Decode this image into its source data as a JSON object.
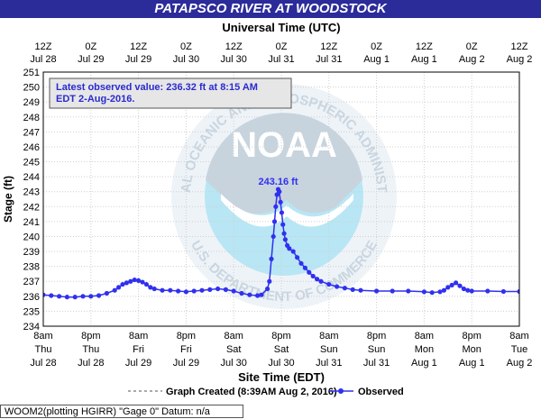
{
  "chart_data": {
    "type": "line",
    "title": "PATAPSCO RIVER AT WOODSTOCK",
    "top_axis_title": "Universal Time (UTC)",
    "top_ticks": [
      {
        "line1": "12Z",
        "line2": "Jul 28"
      },
      {
        "line1": "0Z",
        "line2": "Jul 29"
      },
      {
        "line1": "12Z",
        "line2": "Jul 29"
      },
      {
        "line1": "0Z",
        "line2": "Jul 30"
      },
      {
        "line1": "12Z",
        "line2": "Jul 30"
      },
      {
        "line1": "0Z",
        "line2": "Jul 31"
      },
      {
        "line1": "12Z",
        "line2": "Jul 31"
      },
      {
        "line1": "0Z",
        "line2": "Aug  1"
      },
      {
        "line1": "12Z",
        "line2": "Aug  1"
      },
      {
        "line1": "0Z",
        "line2": "Aug  2"
      },
      {
        "line1": "12Z",
        "line2": "Aug  2"
      }
    ],
    "bottom_ticks": [
      {
        "line1": "8am",
        "line2": "Thu",
        "line3": "Jul 28"
      },
      {
        "line1": "8pm",
        "line2": "Thu",
        "line3": "Jul 28"
      },
      {
        "line1": "8am",
        "line2": "Fri",
        "line3": "Jul 29"
      },
      {
        "line1": "8pm",
        "line2": "Fri",
        "line3": "Jul 29"
      },
      {
        "line1": "8am",
        "line2": "Sat",
        "line3": "Jul 30"
      },
      {
        "line1": "8pm",
        "line2": "Sat",
        "line3": "Jul 30"
      },
      {
        "line1": "8am",
        "line2": "Sun",
        "line3": "Jul 31"
      },
      {
        "line1": "8pm",
        "line2": "Sun",
        "line3": "Jul 31"
      },
      {
        "line1": "8am",
        "line2": "Mon",
        "line3": "Aug 1"
      },
      {
        "line1": "8pm",
        "line2": "Mon",
        "line3": "Aug 1"
      },
      {
        "line1": "8am",
        "line2": "Tue",
        "line3": "Aug 2"
      }
    ],
    "xlabel": "Site Time (EDT)",
    "ylabel": "Stage (ft)",
    "ylim": [
      234,
      251
    ],
    "yticks": [
      234,
      235,
      236,
      237,
      238,
      239,
      240,
      241,
      242,
      243,
      244,
      245,
      246,
      247,
      248,
      249,
      250,
      251
    ],
    "x_unit": "hours after 8am EDT Jul 28",
    "xlim": [
      0,
      120
    ],
    "grid": true,
    "latest_box": "Latest observed value: 236.32  ft at 8:15 AM EDT 2-Aug-2016.",
    "peak_label": "243.16 ft",
    "watermark": "NOAA",
    "watermark_ring": "NATIONAL OCEANIC AND ATMOSPHERIC ADMINISTRATION",
    "watermark_ring_bottom": "U.S. DEPARTMENT OF COMMERCE",
    "legend": {
      "created_label": "Graph Created (8:39AM Aug 2, 2016)",
      "series_label": "Observed"
    },
    "series": [
      {
        "name": "Observed",
        "color": "#3030f0",
        "points": [
          [
            0,
            236.1
          ],
          [
            2,
            236.05
          ],
          [
            4,
            236.0
          ],
          [
            6,
            235.95
          ],
          [
            8,
            235.95
          ],
          [
            10,
            236.0
          ],
          [
            12,
            236.0
          ],
          [
            14,
            236.05
          ],
          [
            16,
            236.2
          ],
          [
            18,
            236.4
          ],
          [
            19,
            236.6
          ],
          [
            20,
            236.8
          ],
          [
            21,
            236.9
          ],
          [
            22,
            237.0
          ],
          [
            23,
            237.1
          ],
          [
            24,
            237.05
          ],
          [
            25,
            236.95
          ],
          [
            26,
            236.8
          ],
          [
            27,
            236.6
          ],
          [
            28,
            236.5
          ],
          [
            30,
            236.4
          ],
          [
            32,
            236.4
          ],
          [
            34,
            236.35
          ],
          [
            36,
            236.3
          ],
          [
            38,
            236.35
          ],
          [
            40,
            236.4
          ],
          [
            42,
            236.45
          ],
          [
            44,
            236.5
          ],
          [
            46,
            236.45
          ],
          [
            48,
            236.35
          ],
          [
            50,
            236.2
          ],
          [
            52,
            236.1
          ],
          [
            54,
            236.05
          ],
          [
            55,
            236.1
          ],
          [
            56.5,
            236.5
          ],
          [
            57,
            237.0
          ],
          [
            57.5,
            238.5
          ],
          [
            58,
            240.0
          ],
          [
            58.3,
            241.0
          ],
          [
            58.6,
            242.0
          ],
          [
            58.9,
            242.8
          ],
          [
            59.2,
            243.16
          ],
          [
            59.5,
            243.0
          ],
          [
            59.8,
            242.3
          ],
          [
            60.1,
            241.6
          ],
          [
            60.4,
            240.8
          ],
          [
            60.7,
            240.2
          ],
          [
            61,
            239.8
          ],
          [
            61.5,
            239.4
          ],
          [
            62,
            239.2
          ],
          [
            63,
            239.0
          ],
          [
            64,
            238.6
          ],
          [
            65,
            238.2
          ],
          [
            66,
            237.9
          ],
          [
            67,
            237.6
          ],
          [
            68,
            237.35
          ],
          [
            69,
            237.15
          ],
          [
            70,
            237.0
          ],
          [
            72,
            236.8
          ],
          [
            74,
            236.65
          ],
          [
            76,
            236.55
          ],
          [
            78,
            236.45
          ],
          [
            80,
            236.4
          ],
          [
            84,
            236.35
          ],
          [
            88,
            236.35
          ],
          [
            92,
            236.35
          ],
          [
            96,
            236.3
          ],
          [
            98,
            236.25
          ],
          [
            100,
            236.3
          ],
          [
            101,
            236.4
          ],
          [
            102,
            236.6
          ],
          [
            103,
            236.75
          ],
          [
            104,
            236.9
          ],
          [
            105,
            236.7
          ],
          [
            106,
            236.5
          ],
          [
            107,
            236.4
          ],
          [
            108,
            236.35
          ],
          [
            112,
            236.35
          ],
          [
            116,
            236.32
          ],
          [
            120,
            236.32
          ]
        ]
      }
    ]
  },
  "footer": {
    "text": "WOOM2(plotting HGIRR) \"Gage 0\" Datum: n/a"
  }
}
